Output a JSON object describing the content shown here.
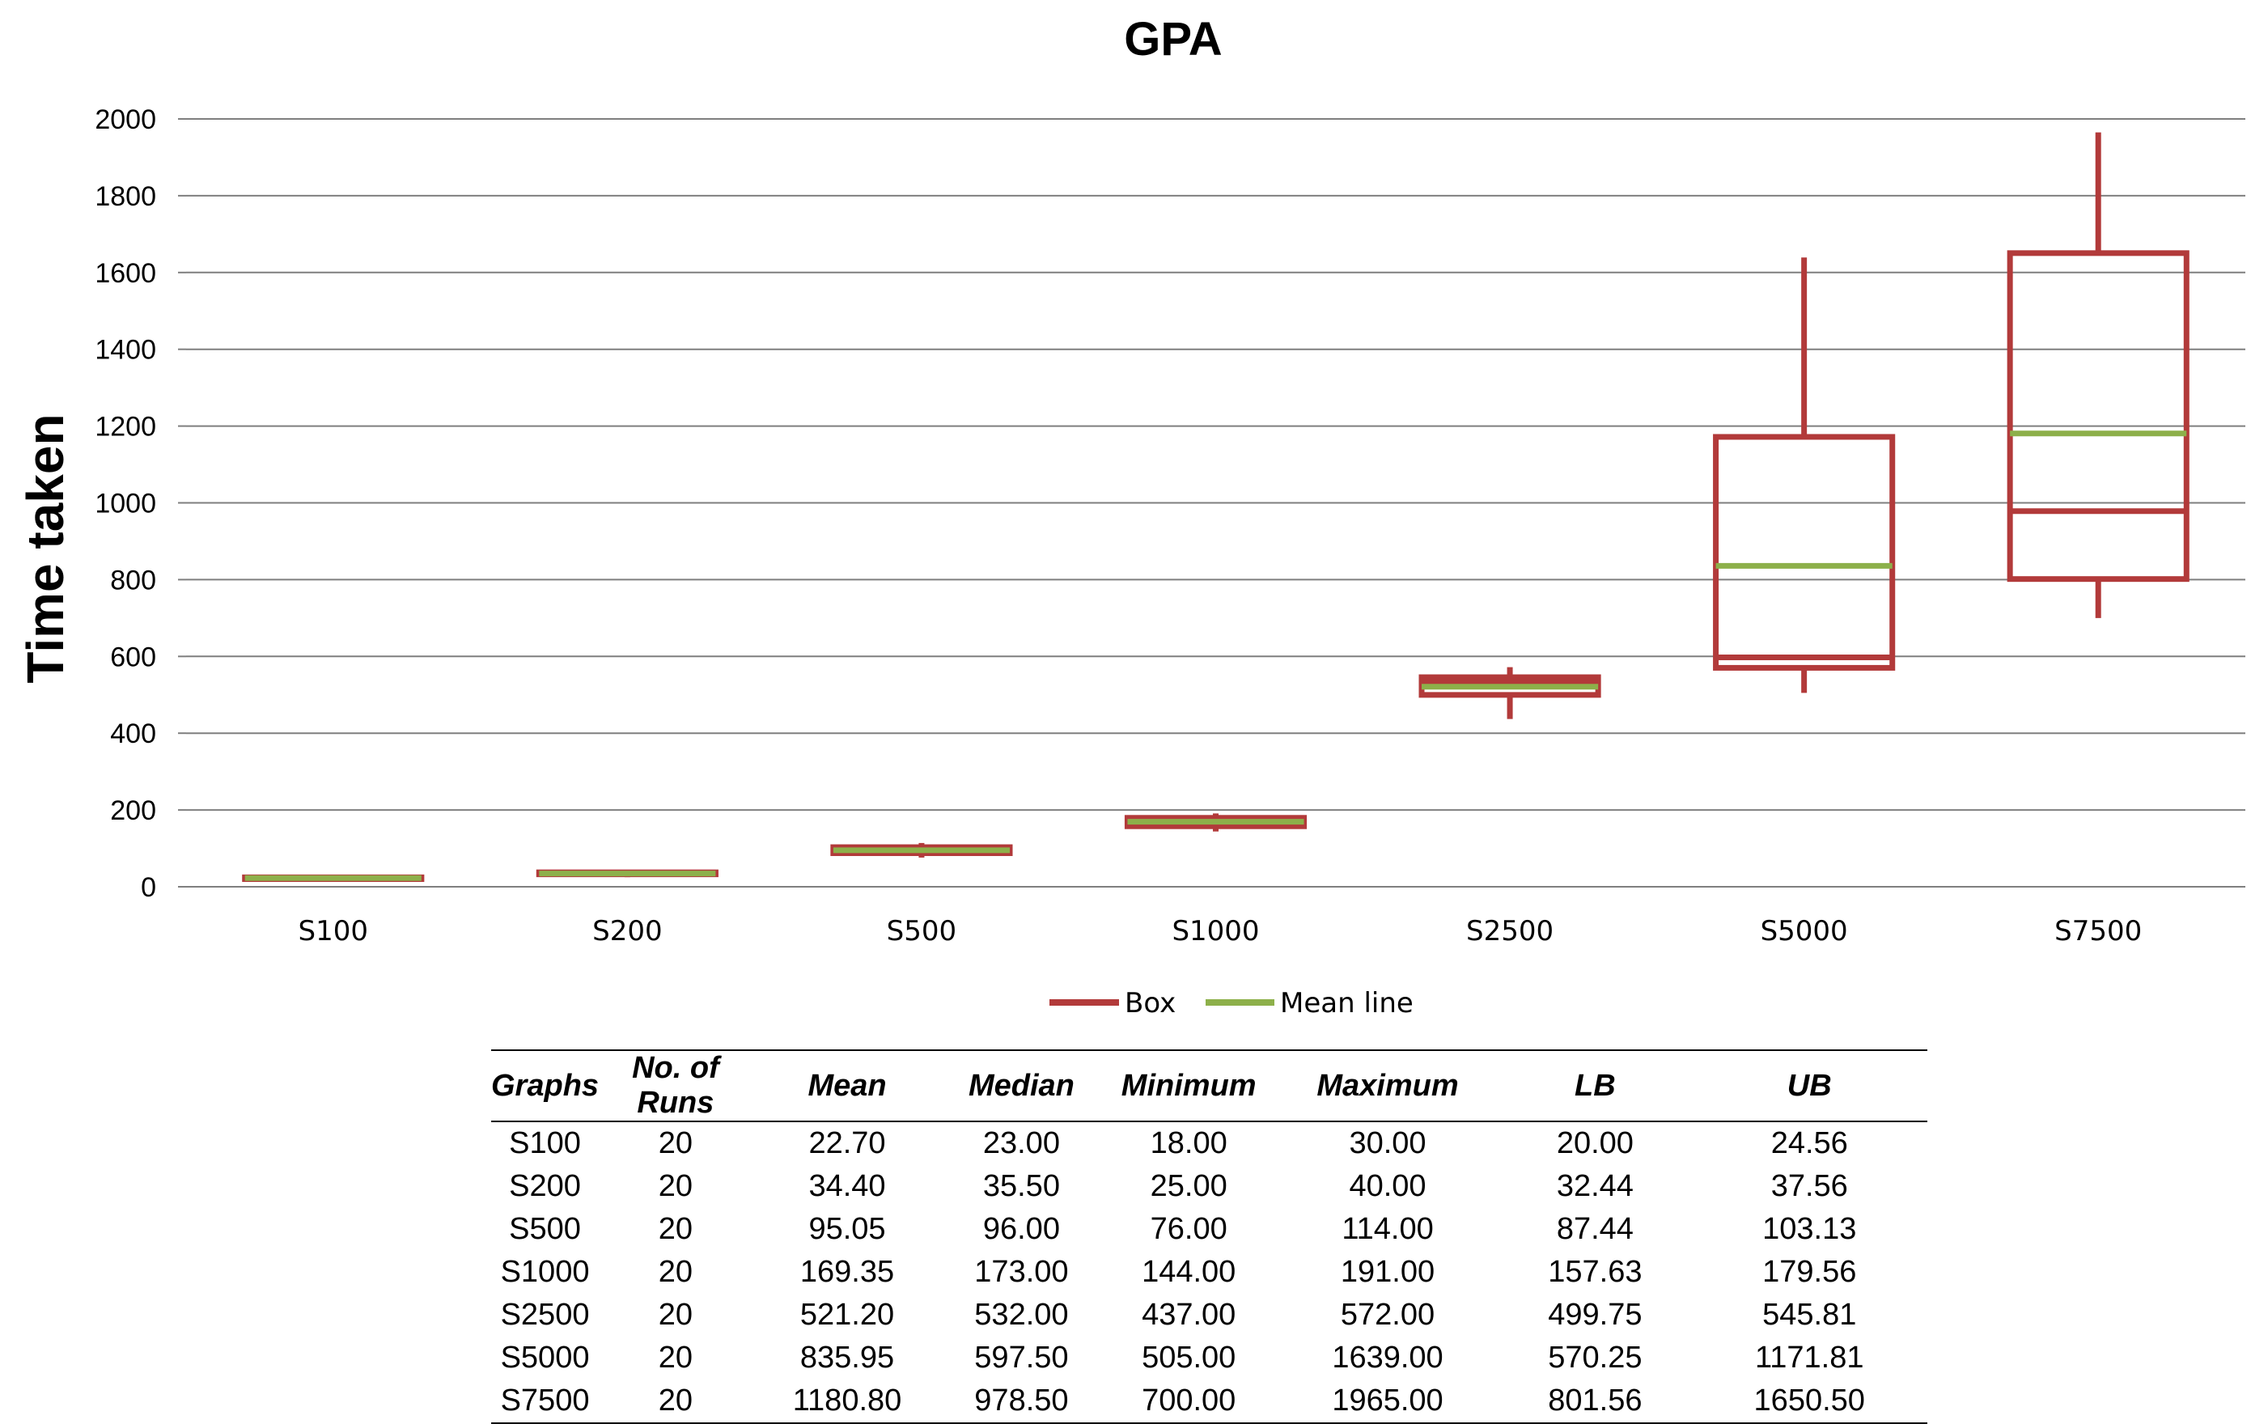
{
  "chart_data": {
    "type": "box",
    "title": "GPA",
    "ylabel": "Time  taken",
    "xlabel": "",
    "ylim": [
      0,
      2000
    ],
    "yticks": [
      0,
      200,
      400,
      600,
      800,
      1000,
      1200,
      1400,
      1600,
      1800,
      2000
    ],
    "categories": [
      "S100",
      "S200",
      "S500",
      "S1000",
      "S2500",
      "S5000",
      "S7500"
    ],
    "series": [
      {
        "name": "Box",
        "color": "#b23a3a",
        "boxes": [
          {
            "category": "S100",
            "min": 18.0,
            "lb": 20.0,
            "median": 23.0,
            "ub": 24.56,
            "max": 30.0
          },
          {
            "category": "S200",
            "min": 25.0,
            "lb": 32.44,
            "median": 35.5,
            "ub": 37.56,
            "max": 40.0
          },
          {
            "category": "S500",
            "min": 76.0,
            "lb": 87.44,
            "median": 96.0,
            "ub": 103.13,
            "max": 114.0
          },
          {
            "category": "S1000",
            "min": 144.0,
            "lb": 157.63,
            "median": 173.0,
            "ub": 179.56,
            "max": 191.0
          },
          {
            "category": "S2500",
            "min": 437.0,
            "lb": 499.75,
            "median": 532.0,
            "ub": 545.81,
            "max": 572.0
          },
          {
            "category": "S5000",
            "min": 505.0,
            "lb": 570.25,
            "median": 597.5,
            "ub": 1171.81,
            "max": 1639.0
          },
          {
            "category": "S7500",
            "min": 700.0,
            "lb": 801.56,
            "median": 978.5,
            "ub": 1650.5,
            "max": 1965.0
          }
        ]
      },
      {
        "name": "Mean line",
        "color": "#8db04a",
        "values": [
          22.7,
          34.4,
          95.05,
          169.35,
          521.2,
          835.95,
          1180.8
        ]
      }
    ],
    "grid": true,
    "legend_position": "bottom"
  },
  "table": {
    "headers": [
      "Graphs",
      "No. of Runs",
      "Mean",
      "Median",
      "Minimum",
      "Maximum",
      "LB",
      "UB"
    ],
    "rows": [
      [
        "S100",
        "20",
        "22.70",
        "23.00",
        "18.00",
        "30.00",
        "20.00",
        "24.56"
      ],
      [
        "S200",
        "20",
        "34.40",
        "35.50",
        "25.00",
        "40.00",
        "32.44",
        "37.56"
      ],
      [
        "S500",
        "20",
        "95.05",
        "96.00",
        "76.00",
        "114.00",
        "87.44",
        "103.13"
      ],
      [
        "S1000",
        "20",
        "169.35",
        "173.00",
        "144.00",
        "191.00",
        "157.63",
        "179.56"
      ],
      [
        "S2500",
        "20",
        "521.20",
        "532.00",
        "437.00",
        "572.00",
        "499.75",
        "545.81"
      ],
      [
        "S5000",
        "20",
        "835.95",
        "597.50",
        "505.00",
        "1639.00",
        "570.25",
        "1171.81"
      ],
      [
        "S7500",
        "20",
        "1180.80",
        "978.50",
        "700.00",
        "1965.00",
        "801.56",
        "1650.50"
      ]
    ]
  }
}
